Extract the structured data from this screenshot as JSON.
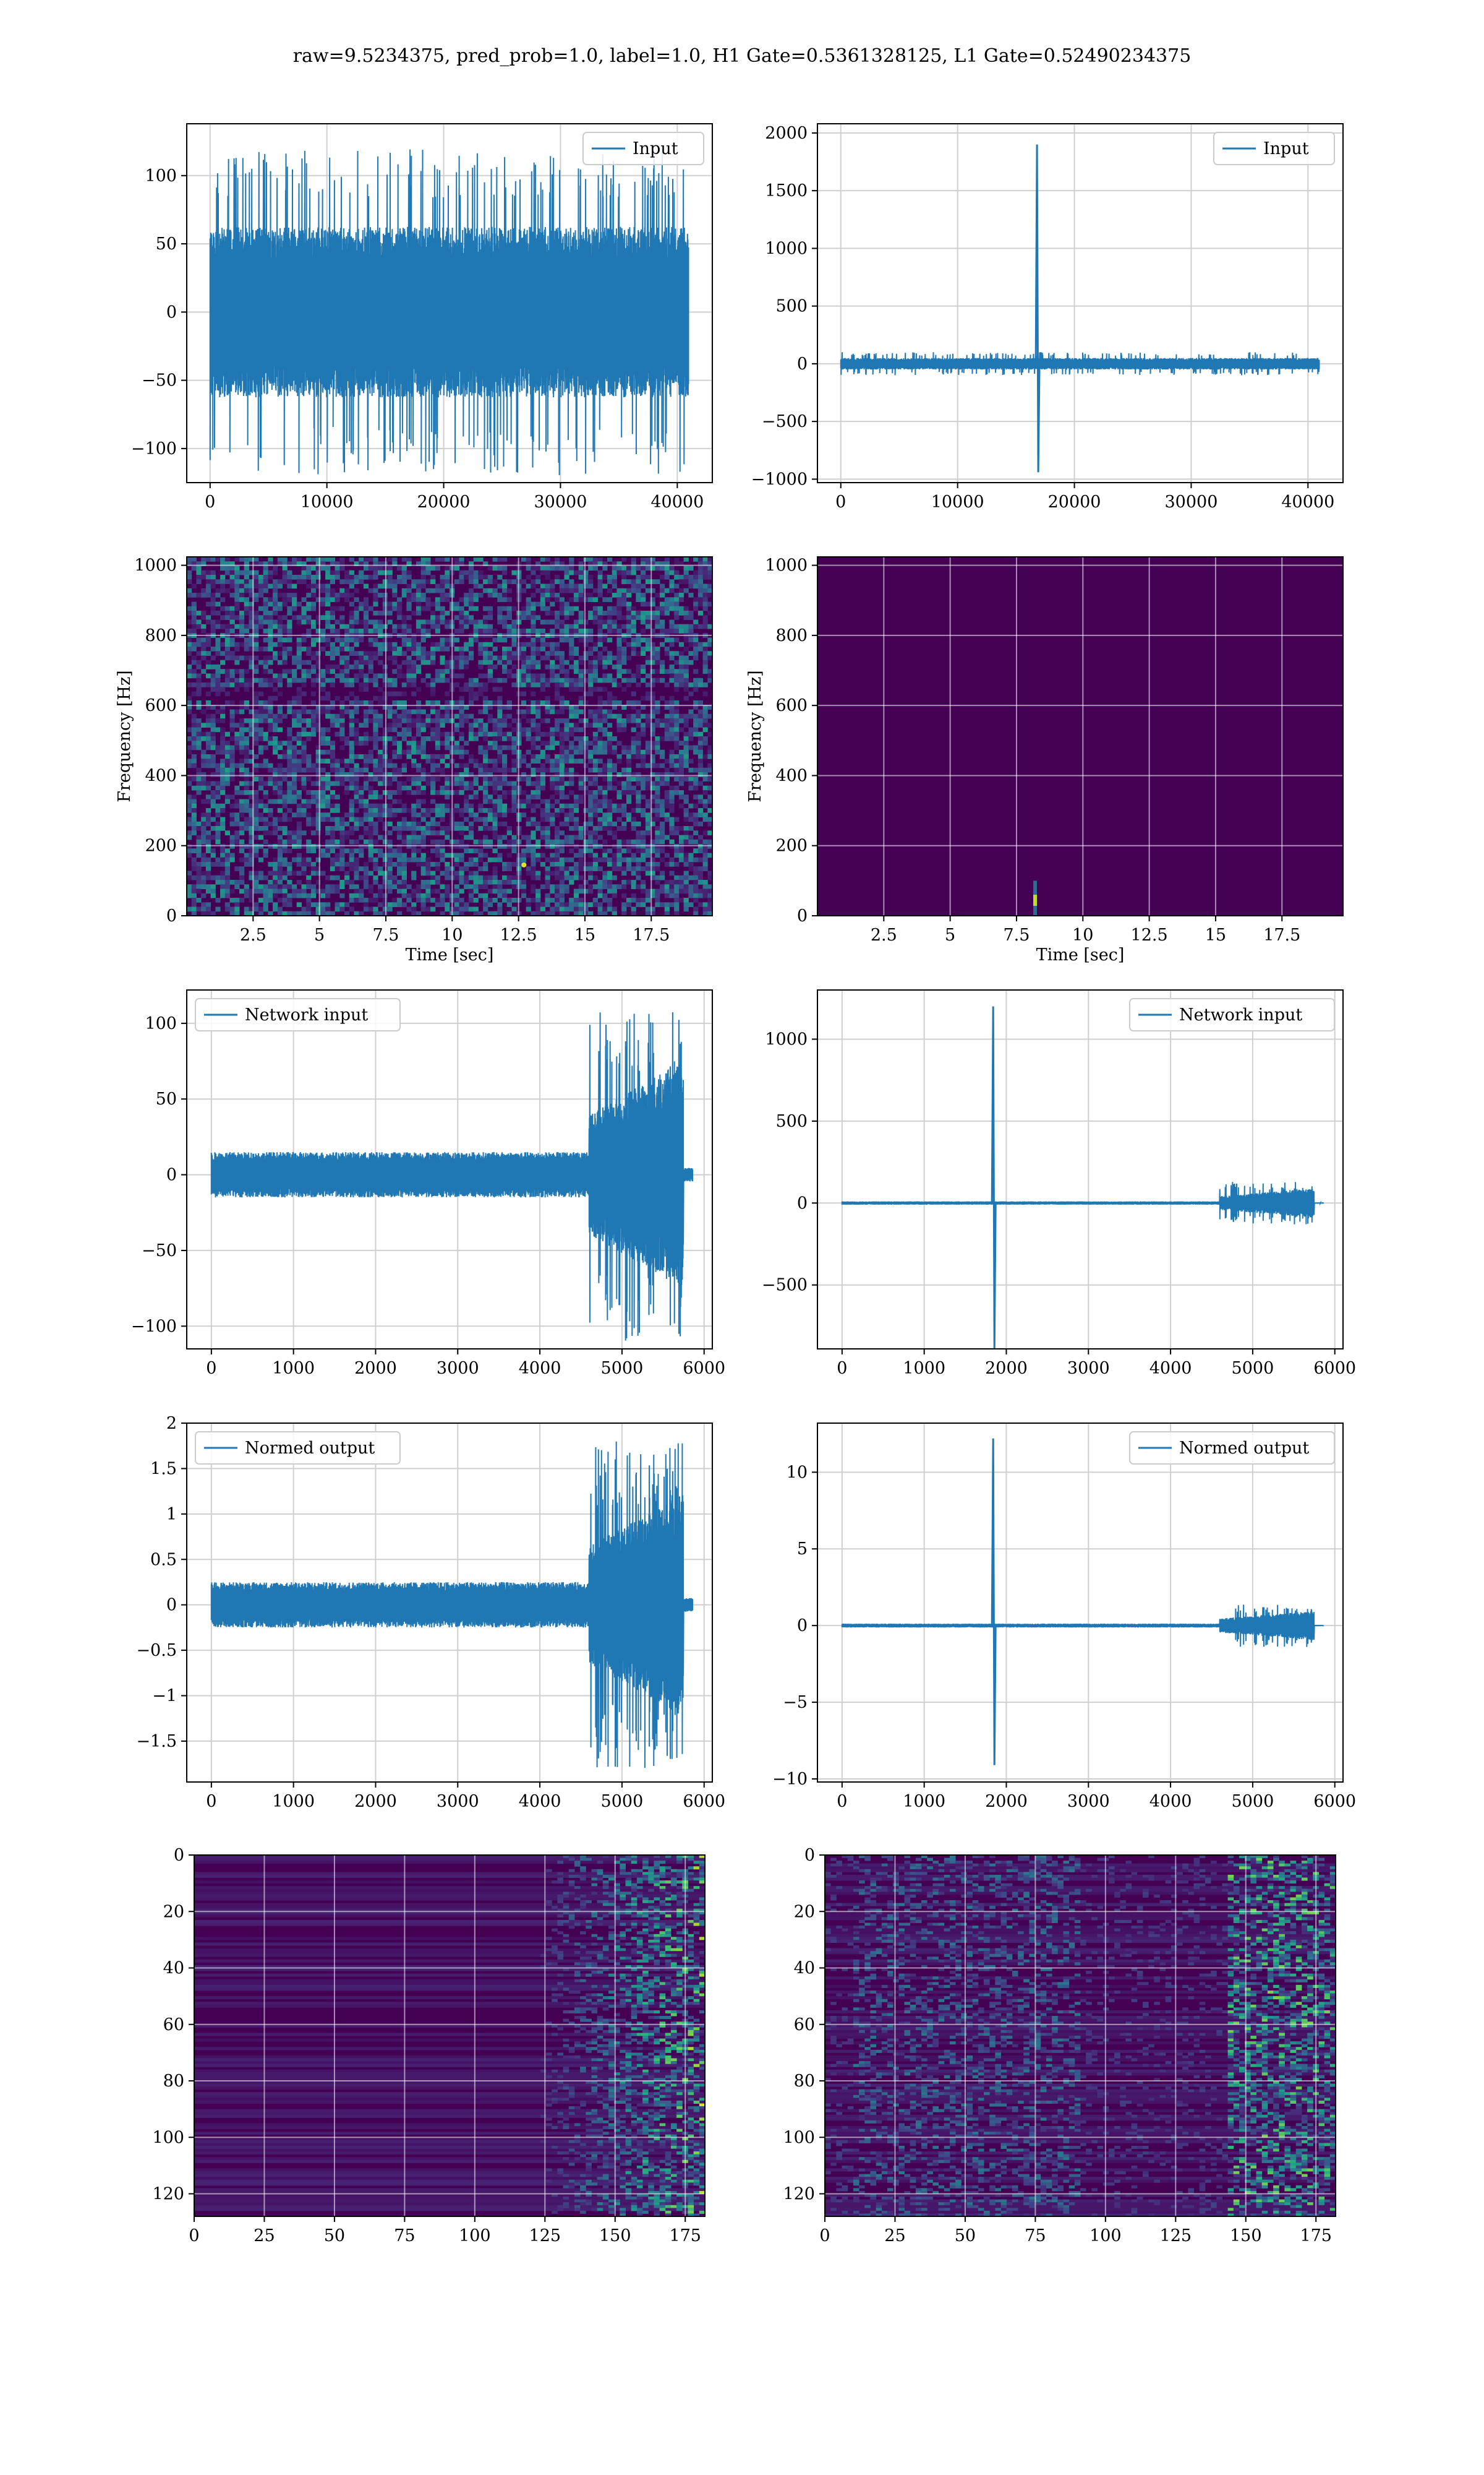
{
  "figure": {
    "suptitle": "raw=9.5234375, pred_prob=1.0, label=1.0, H1 Gate=0.5361328125, L1 Gate=0.52490234375"
  },
  "colors": {
    "line": "#1f77b4",
    "viridis_low": "#440154",
    "grid": "#cfcfcf"
  },
  "chart_data": [
    {
      "id": "h1-input",
      "type": "line",
      "legend": "Input",
      "legend_loc": "upper right",
      "grid": true,
      "xlim": [
        -2000,
        43000
      ],
      "ylim": [
        -125,
        138
      ],
      "xticks": [
        0,
        10000,
        20000,
        30000,
        40000
      ],
      "yticks": [
        -100,
        -50,
        0,
        50,
        100
      ],
      "x_range": [
        0,
        40960
      ],
      "noise_amplitude": 50,
      "noise_peak": 120,
      "spike": null
    },
    {
      "id": "l1-input",
      "type": "line",
      "legend": "Input",
      "legend_loc": "upper right",
      "grid": true,
      "xlim": [
        -2000,
        43000
      ],
      "ylim": [
        -1030,
        2080
      ],
      "xticks": [
        0,
        10000,
        20000,
        30000,
        40000
      ],
      "yticks": [
        -1000,
        -500,
        0,
        500,
        1000,
        1500,
        2000
      ],
      "x_range": [
        0,
        40960
      ],
      "noise_amplitude": 40,
      "noise_peak": 100,
      "spike": {
        "x": 16800,
        "max": 1900,
        "min": -940
      }
    },
    {
      "id": "h1-spectrogram",
      "type": "heatmap",
      "colormap": "viridis",
      "grid": true,
      "xlabel": "Time [sec]",
      "ylabel": "Frequency [Hz]",
      "xlim": [
        0.0,
        19.8
      ],
      "ylim": [
        0,
        1024
      ],
      "xticks": [
        2.5,
        5.0,
        7.5,
        10.0,
        12.5,
        15.0,
        17.5
      ],
      "yticks": [
        0,
        200,
        400,
        600,
        800,
        1000
      ],
      "pattern": "noise",
      "hot_spot": {
        "time": 12.7,
        "freq": 145
      }
    },
    {
      "id": "l1-spectrogram",
      "type": "heatmap",
      "colormap": "viridis",
      "grid": true,
      "xlabel": "Time [sec]",
      "ylabel": "Frequency [Hz]",
      "xlim": [
        0.0,
        19.8
      ],
      "ylim": [
        0,
        1024
      ],
      "xticks": [
        2.5,
        5.0,
        7.5,
        10.0,
        12.5,
        15.0,
        17.5
      ],
      "yticks": [
        0,
        200,
        400,
        600,
        800,
        1000
      ],
      "pattern": "dark",
      "hot_spot": {
        "time": 8.2,
        "freq": 40
      }
    },
    {
      "id": "h1-network-input",
      "type": "line",
      "legend": "Network input",
      "legend_loc": "upper left",
      "grid": true,
      "xlim": [
        -300,
        6100
      ],
      "ylim": [
        -115,
        122
      ],
      "xticks": [
        0,
        1000,
        2000,
        3000,
        4000,
        5000,
        6000
      ],
      "yticks": [
        -100,
        -50,
        0,
        50,
        100
      ],
      "x_range": [
        0,
        5860
      ],
      "noise_amplitude": 12,
      "burst_start": 4600,
      "burst_peak": 110,
      "burst_end": 5750,
      "spike": null
    },
    {
      "id": "l1-network-input",
      "type": "line",
      "legend": "Network input",
      "legend_loc": "upper right",
      "grid": true,
      "xlim": [
        -300,
        6100
      ],
      "ylim": [
        -890,
        1300
      ],
      "xticks": [
        0,
        1000,
        2000,
        3000,
        4000,
        5000,
        6000
      ],
      "yticks": [
        -500,
        0,
        500,
        1000
      ],
      "x_range": [
        0,
        5860
      ],
      "noise_amplitude": 8,
      "burst_start": 4600,
      "burst_peak": 130,
      "burst_end": 5750,
      "spike": {
        "x": 1840,
        "max": 1200,
        "min": -890
      }
    },
    {
      "id": "h1-normed-output",
      "type": "line",
      "legend": "Normed output",
      "legend_loc": "upper left",
      "grid": true,
      "xlim": [
        -300,
        6100
      ],
      "ylim": [
        -1.95,
        2.0
      ],
      "xticks": [
        0,
        1000,
        2000,
        3000,
        4000,
        5000,
        6000
      ],
      "yticks": [
        -1.5,
        -1.0,
        -0.5,
        0.0,
        0.5,
        1.0,
        1.5,
        2.0
      ],
      "x_range": [
        0,
        5860
      ],
      "noise_amplitude": 0.2,
      "burst_start": 4600,
      "burst_peak": 1.8,
      "burst_end": 5750,
      "spike": null
    },
    {
      "id": "l1-normed-output",
      "type": "line",
      "legend": "Normed output",
      "legend_loc": "upper right",
      "grid": true,
      "xlim": [
        -300,
        6100
      ],
      "ylim": [
        -10.2,
        13.2
      ],
      "xticks": [
        0,
        1000,
        2000,
        3000,
        4000,
        5000,
        6000
      ],
      "yticks": [
        -10,
        -5,
        0,
        5,
        10
      ],
      "x_range": [
        0,
        5860
      ],
      "noise_amplitude": 0.1,
      "burst_start": 4600,
      "burst_peak": 1.4,
      "burst_end": 5750,
      "spike": {
        "x": 1840,
        "max": 12.2,
        "min": -9.1
      }
    },
    {
      "id": "h1-feature-map",
      "type": "heatmap",
      "colormap": "viridis",
      "grid": true,
      "xlim": [
        0,
        182
      ],
      "ylim_inverted": [
        0,
        128
      ],
      "xticks": [
        0,
        25,
        50,
        75,
        100,
        125,
        150,
        175
      ],
      "yticks": [
        0,
        20,
        40,
        60,
        80,
        100,
        120
      ],
      "pattern": "rows-late"
    },
    {
      "id": "l1-feature-map",
      "type": "heatmap",
      "colormap": "viridis",
      "grid": true,
      "xlim": [
        0,
        182
      ],
      "ylim_inverted": [
        0,
        128
      ],
      "xticks": [
        0,
        25,
        50,
        75,
        100,
        125,
        150,
        175
      ],
      "yticks": [
        0,
        20,
        40,
        60,
        80,
        100,
        120
      ],
      "pattern": "rows-mid-late"
    }
  ]
}
